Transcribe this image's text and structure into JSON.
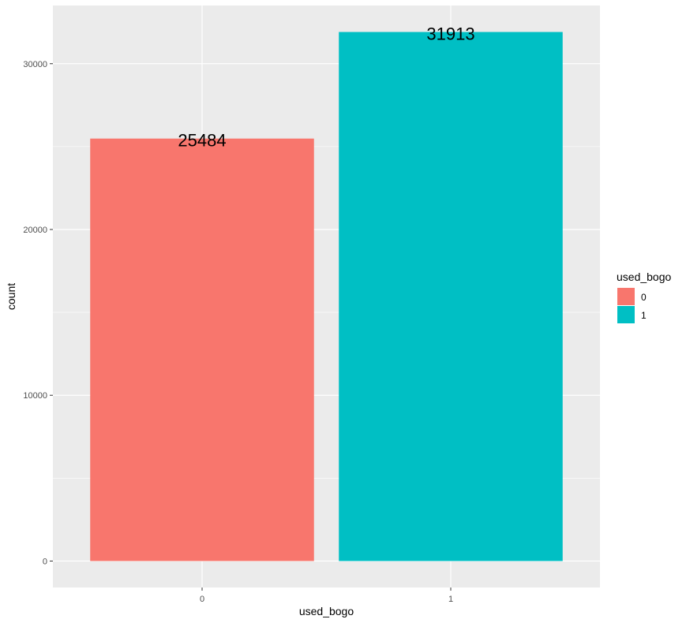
{
  "chart_data": {
    "type": "bar",
    "categories": [
      "0",
      "1"
    ],
    "values": [
      25484,
      31913
    ],
    "data_labels": [
      "25484",
      "31913"
    ],
    "xlabel": "used_bogo",
    "ylabel": "count",
    "ylim": [
      -1596,
      33509
    ],
    "yticks": [
      0,
      10000,
      20000,
      30000
    ],
    "ytick_labels": [
      "0",
      "10000",
      "20000",
      "30000"
    ],
    "grid": true,
    "panel_background": "#EBEBEB",
    "grid_color": "#FFFFFF",
    "colors": [
      "#F8766D",
      "#00BFC4"
    ],
    "legend": {
      "title": "used_bogo",
      "position": "right",
      "entries": [
        "0",
        "1"
      ]
    }
  }
}
